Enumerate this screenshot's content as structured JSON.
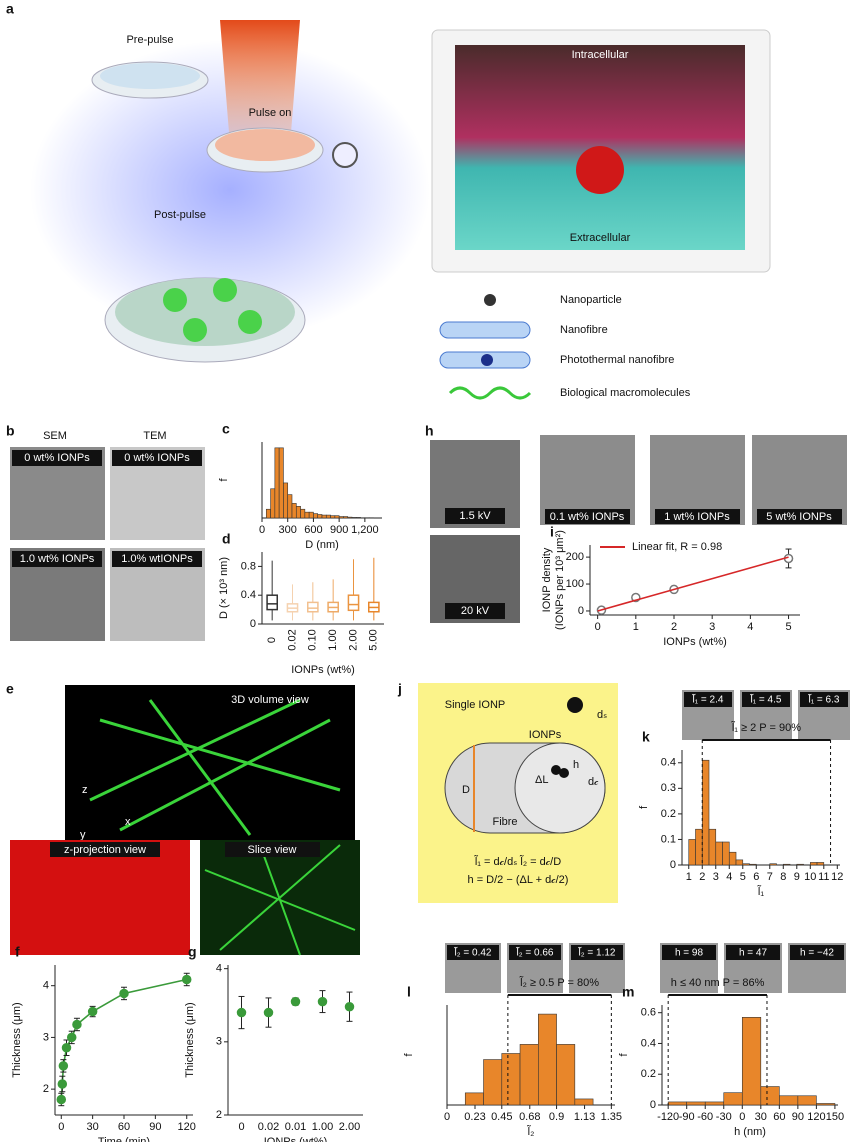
{
  "panel_a": {
    "label": "a",
    "dishes": [
      "Pre-pulse",
      "Pulse on",
      "Post-pulse"
    ],
    "inset": [
      "Intracellular",
      "Extracellular"
    ],
    "legend": [
      "Nanoparticle",
      "Nanofibre",
      "Photothermal nanofibre",
      "Biological macromolecules"
    ]
  },
  "panel_b": {
    "label": "b",
    "columns": [
      "SEM",
      "TEM"
    ],
    "images": [
      "0 wt% IONPs",
      "0 wt% IONPs",
      "1.0 wt% IONPs",
      "1.0% wtIONPs"
    ]
  },
  "panel_h": {
    "label": "h",
    "images": [
      "1.5 kV",
      "20 kV"
    ]
  },
  "panel_i": {
    "images": [
      "0.1 wt% IONPs",
      "1 wt% IONPs",
      "5 wt% IONPs"
    ]
  },
  "panel_e": {
    "label": "e",
    "views": [
      "3D volume view",
      "z-projection view",
      "Slice view"
    ],
    "axes": [
      "z",
      "y",
      "x"
    ]
  },
  "panel_j": {
    "label": "j",
    "single": "Single IONP",
    "ionps": "IONPs",
    "fibre": "Fibre",
    "symbols": [
      "dₛ",
      "D",
      "h",
      "ΔL",
      "d𝒸"
    ],
    "eq1": "l̃₁ = d𝒸/dₛ   l̃₂ = d𝒸/D",
    "eq2": "h = D/2 − (ΔL + d𝒸/2)"
  },
  "panel_k": {
    "images": [
      "l̃₁ = 2.4",
      "l̃₁ = 4.5",
      "l̃₁ = 6.3"
    ]
  },
  "panel_l": {
    "images": [
      "l̃₂ = 0.42",
      "l̃₂ = 0.66",
      "l̃₂ = 1.12"
    ]
  },
  "panel_m": {
    "images": [
      "h = 98",
      "h = 47",
      "h = −42"
    ]
  },
  "chart_data": [
    {
      "type": "histogram",
      "label": "c",
      "xlabel": "D (nm)",
      "ylabel": "f",
      "color": "#e8862a",
      "bins": [
        50,
        100,
        150,
        200,
        250,
        300,
        350,
        400,
        450,
        500,
        550,
        600,
        650,
        700,
        750,
        800,
        850,
        900,
        950,
        1000,
        1050,
        1100,
        1150,
        1200,
        1250,
        1300
      ],
      "values": [
        0.03,
        0.1,
        0.24,
        0.24,
        0.12,
        0.08,
        0.05,
        0.04,
        0.03,
        0.02,
        0.02,
        0.015,
        0.012,
        0.01,
        0.01,
        0.008,
        0.008,
        0.005,
        0.005,
        0.003,
        0.002,
        0.002,
        0.001,
        0.001,
        0.001
      ],
      "xlim": [
        0,
        1400
      ],
      "ylim": [
        0,
        0.26
      ],
      "xticks": [
        0,
        300,
        600,
        900,
        {
          "value": 1200,
          "label": "1,200"
        }
      ]
    },
    {
      "type": "box",
      "label": "d",
      "xlabel": "IONPs (wt%)",
      "ylabel": "D (× 10³ nm)",
      "categories": [
        "0",
        "0.02",
        "0.10",
        "1.00",
        "2.00",
        "5.00"
      ],
      "boxes": [
        {
          "min": 0.05,
          "q1": 0.2,
          "median": 0.28,
          "q3": 0.4,
          "max": 0.88,
          "color": "#333333"
        },
        {
          "min": 0.05,
          "q1": 0.17,
          "median": 0.22,
          "q3": 0.28,
          "max": 0.55,
          "color": "#f5d2b0"
        },
        {
          "min": 0.05,
          "q1": 0.17,
          "median": 0.22,
          "q3": 0.3,
          "max": 0.58,
          "color": "#f2c08f"
        },
        {
          "min": 0.05,
          "q1": 0.17,
          "median": 0.23,
          "q3": 0.3,
          "max": 0.62,
          "color": "#eeaa66"
        },
        {
          "min": 0.05,
          "q1": 0.19,
          "median": 0.27,
          "q3": 0.4,
          "max": 0.9,
          "color": "#ea9440"
        },
        {
          "min": 0.05,
          "q1": 0.17,
          "median": 0.23,
          "q3": 0.3,
          "max": 0.92,
          "color": "#e8862a"
        }
      ],
      "ylim": [
        0,
        1.0
      ],
      "yticks": [
        0,
        0.4,
        0.8
      ]
    },
    {
      "type": "line",
      "label": "i",
      "xlabel": "IONPs (wt%)",
      "ylabel": [
        "IONP density",
        "(IONPs per 10³ μm²)"
      ],
      "series": [
        {
          "x": [
            0.1,
            1,
            2,
            5
          ],
          "values": [
            3,
            50,
            80,
            195
          ],
          "errors": [
            3,
            10,
            12,
            35
          ],
          "color": "#777777",
          "style": "points"
        },
        {
          "name": "Linear fit, R = 0.98",
          "x": [
            0,
            5
          ],
          "values": [
            0,
            200
          ],
          "color": "#d62728",
          "style": "line"
        }
      ],
      "xlim": [
        -0.2,
        5.3
      ],
      "ylim": [
        -15,
        245
      ],
      "xticks": [
        0,
        1,
        2,
        3,
        4,
        5
      ],
      "yticks": [
        0,
        100,
        200
      ]
    },
    {
      "type": "line",
      "label": "f",
      "xlabel": "Time (min)",
      "ylabel": "Thickness (μm)",
      "series": [
        {
          "x": [
            0,
            1,
            2,
            5,
            10,
            15,
            30,
            60,
            120
          ],
          "values": [
            1.8,
            2.1,
            2.45,
            2.8,
            3.0,
            3.25,
            3.5,
            3.85,
            4.12
          ],
          "errors": [
            0.12,
            0.15,
            0.12,
            0.15,
            0.12,
            0.12,
            0.1,
            0.12,
            0.12
          ],
          "color": "#3a9a3a",
          "style": "linepoints"
        }
      ],
      "xlim": [
        -6,
        126
      ],
      "ylim": [
        1.5,
        4.4
      ],
      "xticks": [
        0,
        30,
        60,
        90,
        120
      ],
      "yticks": [
        2,
        3,
        4
      ]
    },
    {
      "type": "scatter",
      "label": "g",
      "xlabel": "IONPs (wt%)",
      "ylabel": "Thickness (μm)",
      "categories": [
        "0",
        "0.02",
        "0.01",
        "1.00",
        "2.00"
      ],
      "series": [
        {
          "values": [
            3.4,
            3.4,
            3.55,
            3.55,
            3.48
          ],
          "errors": [
            0.22,
            0.2,
            0.05,
            0.15,
            0.2
          ],
          "color": "#3a9a3a",
          "style": "points"
        }
      ],
      "ylim": [
        2,
        4.05
      ],
      "yticks": [
        2,
        3,
        4
      ]
    },
    {
      "type": "histogram",
      "label": "k",
      "xlabel": "l̃₁",
      "ylabel": "f",
      "color": "#e8862a",
      "annotation": "l̃₁ ≥ 2   P = 90%",
      "range": [
        2,
        11.5
      ],
      "bins": [
        1,
        1.5,
        2,
        2.5,
        3,
        3.5,
        4,
        4.5,
        5,
        5.5,
        6,
        6.5,
        7,
        7.5,
        8,
        8.5,
        9,
        9.5,
        10,
        10.5,
        11
      ],
      "values": [
        0.1,
        0.14,
        0.41,
        0.14,
        0.09,
        0.09,
        0.05,
        0.02,
        0.005,
        0.003,
        0,
        0,
        0.005,
        0,
        0.003,
        0,
        0.003,
        0,
        0.01,
        0.01
      ],
      "xlim": [
        0.5,
        12.2
      ],
      "ylim": [
        0,
        0.45
      ],
      "xticks": [
        1,
        2,
        3,
        4,
        5,
        6,
        7,
        8,
        9,
        10,
        11,
        12
      ],
      "yticks": [
        0,
        0.1,
        0.2,
        0.3,
        0.4
      ]
    },
    {
      "type": "histogram",
      "label": "l",
      "xlabel": "l̃₂",
      "ylabel": "f",
      "color": "#e8862a",
      "annotation": "l̃₂ ≥ 0.5   P = 80%",
      "range": [
        0.5,
        1.35
      ],
      "bins": [
        0.15,
        0.3,
        0.45,
        0.6,
        0.75,
        0.9,
        1.05,
        1.2
      ],
      "values": [
        0.04,
        0.15,
        0.17,
        0.2,
        0.3,
        0.2,
        0.02
      ],
      "xlim": [
        0,
        1.38
      ],
      "ylim": [
        0,
        0.33
      ],
      "xticks": [
        0,
        0.23,
        0.45,
        0.68,
        0.9,
        1.13,
        1.35
      ]
    },
    {
      "type": "histogram",
      "label": "m",
      "xlabel": "h (nm)",
      "ylabel": "f",
      "color": "#e8862a",
      "annotation": "h ≤ 40 nm   P = 86%",
      "range": [
        -120,
        40
      ],
      "bins": [
        -120,
        -90,
        -60,
        -30,
        0,
        30,
        60,
        90,
        120,
        150
      ],
      "values": [
        0.02,
        0.02,
        0.02,
        0.08,
        0.57,
        0.12,
        0.06,
        0.06,
        0.01
      ],
      "xlim": [
        -130,
        155
      ],
      "ylim": [
        0,
        0.65
      ],
      "xticks": [
        -120,
        -90,
        -60,
        -30,
        0,
        30,
        60,
        90,
        120,
        150
      ],
      "yticks": [
        0,
        0.2,
        0.4,
        0.6
      ]
    }
  ]
}
